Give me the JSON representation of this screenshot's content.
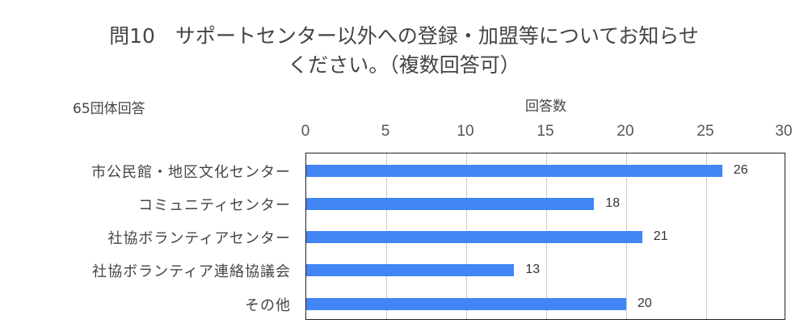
{
  "title": {
    "line1": "問10　サポートセンター以外への登録・加盟等についてお知らせ",
    "line2": "ください。（複数回答可）"
  },
  "note": "65団体回答",
  "chart_data": {
    "type": "bar",
    "orientation": "horizontal",
    "title": "問10　サポートセンター以外への登録・加盟等についてお知らせください。（複数回答可）",
    "subtitle": "65団体回答",
    "xlabel": "回答数",
    "ylabel": "",
    "xlim": [
      0,
      30
    ],
    "ticks": [
      "0",
      "5",
      "10",
      "15",
      "20",
      "25",
      "30"
    ],
    "grid": true,
    "legend": null,
    "categories": [
      "市公民館・地区文化センター",
      "コミュニティセンター",
      "社協ボランティアセンター",
      "社協ボランティア連絡協議会",
      "その他"
    ],
    "values": [
      26,
      18,
      21,
      13,
      20
    ],
    "data_labels": [
      "26",
      "18",
      "21",
      "13",
      "20"
    ],
    "bar_color": "#4285f4"
  }
}
